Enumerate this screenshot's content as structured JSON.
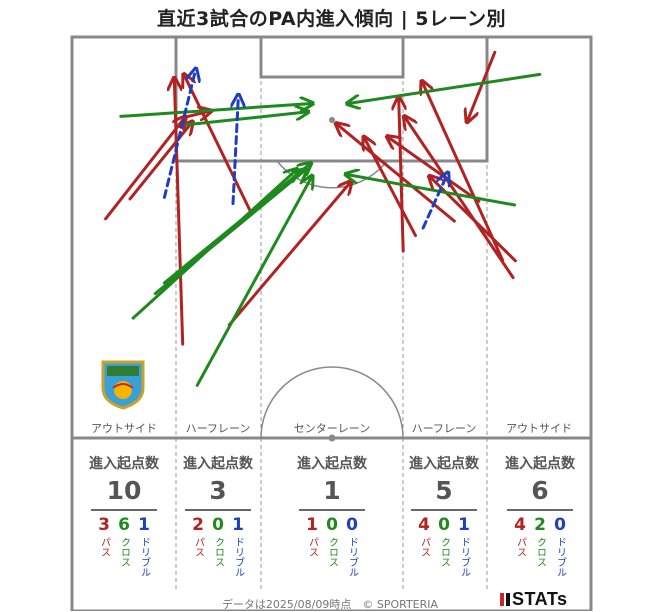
{
  "title": "直近3試合のPA内進入傾向 | 5レーン別",
  "lanes": [
    "アウトサイド",
    "ハーフレーン",
    "センターレーン",
    "ハーフレーン",
    "アウトサイド"
  ],
  "stat_header": "進入起点数",
  "stat_labels": {
    "pass": "パス",
    "cross": "クロス",
    "dribble": "ドリブル"
  },
  "lane_stats": [
    {
      "total": "10",
      "pass": "3",
      "cross": "6",
      "dribble": "1"
    },
    {
      "total": "3",
      "pass": "2",
      "cross": "0",
      "dribble": "1"
    },
    {
      "total": "1",
      "pass": "1",
      "cross": "0",
      "dribble": "0"
    },
    {
      "total": "5",
      "pass": "4",
      "cross": "0",
      "dribble": "1"
    },
    {
      "total": "6",
      "pass": "4",
      "cross": "2",
      "dribble": "0"
    }
  ],
  "footer": "データは2025/08/09時点　© SPORTERIA",
  "brand": "STATs",
  "colors": {
    "pass": "#b22222",
    "cross": "#1e8a1e",
    "dribble": "#1d3fbf",
    "pitch_line": "#888888"
  },
  "chart_data": {
    "type": "arrow-map",
    "coordinate_space": "attacking half, x 0-68 width, y 0-52.5 from goal line",
    "series": [
      {
        "kind": "pass",
        "arrows": [
          [
            [
              4.4,
              23.8
            ],
            [
              14.8,
              10.5
            ]
          ],
          [
            [
              7.6,
              21.2
            ],
            [
              15.7,
              11.2
            ]
          ],
          [
            [
              14.8,
              10.5
            ],
            [
              18.1,
              9.7
            ]
          ],
          [
            [
              23.5,
              23.1
            ],
            [
              14.7,
              5.0
            ]
          ],
          [
            [
              14.5,
              40.2
            ],
            [
              13.4,
              5.5
            ]
          ],
          [
            [
              20.6,
              37.7
            ],
            [
              36.5,
              19.0
            ]
          ],
          [
            [
              55.4,
              2.0
            ],
            [
              51.8,
              11.0
            ]
          ],
          [
            [
              56.4,
              29.2
            ],
            [
              45.9,
              5.9
            ]
          ],
          [
            [
              57.8,
              31.5
            ],
            [
              43.6,
              10.5
            ]
          ],
          [
            [
              53.3,
              21.5
            ],
            [
              41.4,
              13.1
            ]
          ],
          [
            [
              50.1,
              24.1
            ],
            [
              34.7,
              11.4
            ]
          ],
          [
            [
              43.4,
              28.0
            ],
            [
              42.8,
              8.0
            ]
          ],
          [
            [
              45.0,
              26.0
            ],
            [
              38.3,
              13.2
            ]
          ],
          [
            [
              58.1,
              29.3
            ],
            [
              46.9,
              18.3
            ]
          ]
        ]
      },
      {
        "kind": "cross",
        "arrows": [
          [
            [
              6.4,
              10.4
            ],
            [
              31.4,
              8.7
            ]
          ],
          [
            [
              15.0,
              11.5
            ],
            [
              30.8,
              9.8
            ]
          ],
          [
            [
              61.3,
              4.9
            ],
            [
              36.2,
              8.7
            ]
          ],
          [
            [
              10.9,
              33.6
            ],
            [
              30.6,
              17.4
            ]
          ],
          [
            [
              12.1,
              32.2
            ],
            [
              31.2,
              16.6
            ]
          ],
          [
            [
              16.4,
              45.6
            ],
            [
              31.4,
              18.3
            ]
          ],
          [
            [
              8.0,
              36.8
            ],
            [
              29.4,
              17.4
            ]
          ],
          [
            [
              58.0,
              22.0
            ],
            [
              36.0,
              18.0
            ]
          ]
        ]
      },
      {
        "kind": "dribble",
        "arrows": [
          [
            [
              12.1,
              21.0
            ],
            [
              16.2,
              4.3
            ]
          ],
          [
            [
              21.1,
              21.8
            ],
            [
              21.8,
              7.7
            ]
          ],
          [
            [
              46.0,
              25.0
            ],
            [
              49.2,
              17.9
            ]
          ]
        ]
      }
    ]
  }
}
